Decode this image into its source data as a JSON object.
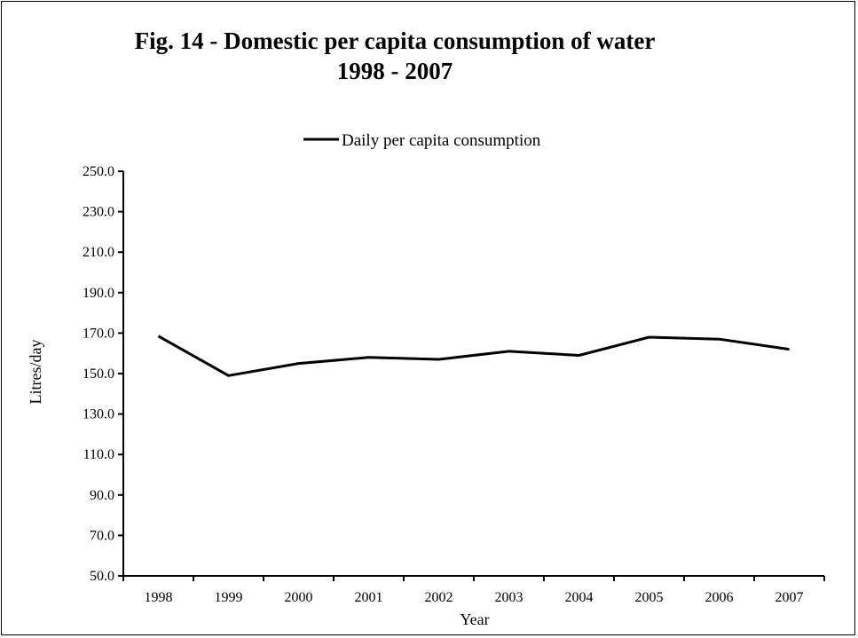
{
  "chart_data": {
    "type": "line",
    "title": "Fig. 14 - Domestic per capita consumption of water",
    "subtitle": "1998 - 2007",
    "xlabel": "Year",
    "ylabel": "Litres/day",
    "categories": [
      "1998",
      "1999",
      "2000",
      "2001",
      "2002",
      "2003",
      "2004",
      "2005",
      "2006",
      "2007"
    ],
    "series": [
      {
        "name": "Daily per capita consumption",
        "values": [
          168.5,
          149.0,
          155.0,
          158.0,
          157.0,
          161.0,
          159.0,
          168.0,
          167.0,
          162.0
        ],
        "color": "#000000"
      }
    ],
    "ylim": [
      50.0,
      250.0
    ],
    "yticks": [
      "50.0",
      "70.0",
      "90.0",
      "110.0",
      "130.0",
      "150.0",
      "170.0",
      "190.0",
      "210.0",
      "230.0",
      "250.0"
    ],
    "grid": false,
    "legend_position": "top-center"
  }
}
